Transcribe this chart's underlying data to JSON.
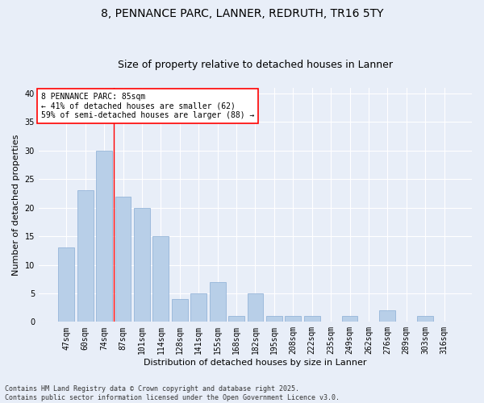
{
  "title1": "8, PENNANCE PARC, LANNER, REDRUTH, TR16 5TY",
  "title2": "Size of property relative to detached houses in Lanner",
  "xlabel": "Distribution of detached houses by size in Lanner",
  "ylabel": "Number of detached properties",
  "categories": [
    "47sqm",
    "60sqm",
    "74sqm",
    "87sqm",
    "101sqm",
    "114sqm",
    "128sqm",
    "141sqm",
    "155sqm",
    "168sqm",
    "182sqm",
    "195sqm",
    "208sqm",
    "222sqm",
    "235sqm",
    "249sqm",
    "262sqm",
    "276sqm",
    "289sqm",
    "303sqm",
    "316sqm"
  ],
  "values": [
    13,
    23,
    30,
    22,
    20,
    15,
    4,
    5,
    7,
    1,
    5,
    1,
    1,
    1,
    0,
    1,
    0,
    2,
    0,
    1,
    0
  ],
  "bar_color": "#b8cfe8",
  "bar_edge_color": "#8aadd4",
  "vline_color": "red",
  "vline_pos": 2.5,
  "annotation_text": "8 PENNANCE PARC: 85sqm\n← 41% of detached houses are smaller (62)\n59% of semi-detached houses are larger (88) →",
  "annotation_box_color": "white",
  "annotation_box_edge": "red",
  "bg_color": "#e8eef8",
  "grid_color": "white",
  "ylim": [
    0,
    41
  ],
  "yticks": [
    0,
    5,
    10,
    15,
    20,
    25,
    30,
    35,
    40
  ],
  "footer": "Contains HM Land Registry data © Crown copyright and database right 2025.\nContains public sector information licensed under the Open Government Licence v3.0.",
  "title_fontsize": 10,
  "subtitle_fontsize": 9,
  "tick_fontsize": 7,
  "ylabel_fontsize": 8,
  "xlabel_fontsize": 8,
  "annotation_fontsize": 7,
  "footer_fontsize": 6
}
